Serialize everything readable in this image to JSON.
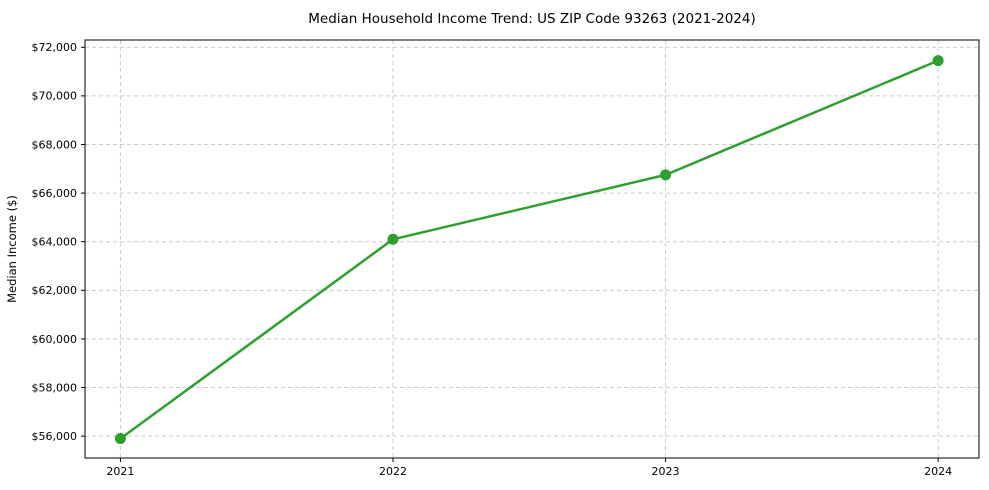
{
  "chart_data": {
    "type": "line",
    "title": "Median Household Income Trend: US ZIP Code 93263 (2021-2024)",
    "xlabel": "",
    "ylabel": "Median Income ($)",
    "x": [
      2021,
      2022,
      2023,
      2024
    ],
    "x_tick_labels": [
      "2021",
      "2022",
      "2023",
      "2024"
    ],
    "series": [
      {
        "name": "Median Household Income",
        "color": "#2ca02c",
        "values": [
          55900,
          64100,
          66750,
          71450
        ]
      }
    ],
    "y_ticks": [
      56000,
      58000,
      60000,
      62000,
      64000,
      66000,
      68000,
      70000,
      72000
    ],
    "y_tick_labels": [
      "$56,000",
      "$58,000",
      "$60,000",
      "$62,000",
      "$64,000",
      "$66,000",
      "$68,000",
      "$70,000",
      "$72,000"
    ],
    "ylim": [
      55100,
      72300
    ],
    "xlim": [
      2020.87,
      2024.15
    ],
    "grid": true,
    "grid_style": "dashed",
    "legend": "none",
    "background_color": "#ffffff",
    "grid_color": "#cccccc",
    "axis_color": "#000000",
    "marker": "circle",
    "marker_size": 11,
    "line_width": 2.5
  }
}
